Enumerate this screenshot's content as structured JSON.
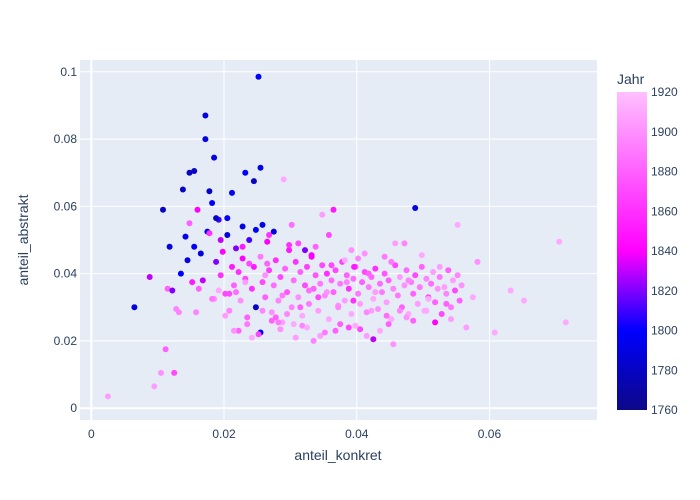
{
  "chart_data": {
    "type": "scatter",
    "title": "",
    "xlabel": "anteil_konkret",
    "ylabel": "anteil_abstrakt",
    "xlim": [
      -0.0017,
      0.0762
    ],
    "ylim": [
      -0.0035,
      0.1035
    ],
    "xticks": [
      "0",
      "0.02",
      "0.04",
      "0.06"
    ],
    "xtick_values": [
      0,
      0.02,
      0.04,
      0.06
    ],
    "yticks": [
      "0",
      "0.02",
      "0.04",
      "0.06",
      "0.08",
      "0.1"
    ],
    "ytick_values": [
      0,
      0.02,
      0.04,
      0.06,
      0.08,
      0.1
    ],
    "grid": true,
    "colorbar": {
      "title": "Jahr",
      "min": 1760,
      "max": 1920,
      "ticks": [
        "1760",
        "1780",
        "1800",
        "1820",
        "1840",
        "1860",
        "1880",
        "1900",
        "1920"
      ],
      "tick_values": [
        1760,
        1780,
        1800,
        1820,
        1840,
        1860,
        1880,
        1900,
        1920
      ],
      "colors": [
        "#0d0887",
        "#0000ff",
        "#ff00ff",
        "#ffc0ff"
      ]
    },
    "plot_bg": "#e5ecf6",
    "points_x": [
      0.0025,
      0.0095,
      0.0105,
      0.0112,
      0.0125,
      0.0132,
      0.0115,
      0.0185,
      0.0065,
      0.0088,
      0.0108,
      0.0118,
      0.0122,
      0.0128,
      0.0135,
      0.0138,
      0.0142,
      0.0145,
      0.0148,
      0.0152,
      0.0155,
      0.0158,
      0.0162,
      0.0165,
      0.0168,
      0.0172,
      0.0175,
      0.0178,
      0.0182,
      0.0185,
      0.0188,
      0.0192,
      0.0195,
      0.0198,
      0.0202,
      0.0205,
      0.0208,
      0.0212,
      0.0215,
      0.0218,
      0.0222,
      0.0225,
      0.0228,
      0.0232,
      0.0235,
      0.0238,
      0.0242,
      0.0245,
      0.0248,
      0.0252,
      0.0255,
      0.0258,
      0.0262,
      0.0265,
      0.0268,
      0.0272,
      0.0275,
      0.0278,
      0.0282,
      0.0285,
      0.0288,
      0.0292,
      0.0295,
      0.0298,
      0.0302,
      0.0305,
      0.0308,
      0.0312,
      0.0315,
      0.0318,
      0.0322,
      0.0325,
      0.0328,
      0.0332,
      0.0335,
      0.0338,
      0.0342,
      0.0345,
      0.0348,
      0.0352,
      0.0355,
      0.0358,
      0.0362,
      0.0365,
      0.0368,
      0.0372,
      0.0375,
      0.0378,
      0.0382,
      0.0385,
      0.0388,
      0.0392,
      0.0395,
      0.0398,
      0.0402,
      0.0405,
      0.0408,
      0.0412,
      0.0415,
      0.0418,
      0.0422,
      0.0425,
      0.0428,
      0.0432,
      0.0435,
      0.0438,
      0.0442,
      0.0445,
      0.0448,
      0.0452,
      0.0455,
      0.0458,
      0.0462,
      0.0465,
      0.0468,
      0.0472,
      0.0475,
      0.0478,
      0.0482,
      0.0485,
      0.0488,
      0.0492,
      0.0495,
      0.0498,
      0.0502,
      0.0505,
      0.0508,
      0.0512,
      0.0515,
      0.0518,
      0.0522,
      0.0525,
      0.0528,
      0.0532,
      0.0535,
      0.0538,
      0.0542,
      0.0545,
      0.0548,
      0.0552,
      0.0555,
      0.0558,
      0.0565,
      0.0575,
      0.0582,
      0.0608,
      0.0632,
      0.0652,
      0.0705,
      0.0715,
      0.0255,
      0.0172,
      0.0188,
      0.0155,
      0.0212,
      0.0232,
      0.0258,
      0.0275,
      0.029,
      0.016,
      0.0205,
      0.0228,
      0.0245,
      0.0365,
      0.0488,
      0.0178,
      0.0195,
      0.0248,
      0.0268,
      0.0312,
      0.0338,
      0.0392,
      0.0412,
      0.0452,
      0.0525,
      0.0552,
      0.0148,
      0.0228,
      0.0302,
      0.0348,
      0.0402,
      0.0458,
      0.0322,
      0.0358,
      0.0382,
      0.0418,
      0.0442,
      0.0498,
      0.0265,
      0.0298,
      0.0332,
      0.0362,
      0.0396,
      0.0428,
      0.0472,
      0.0508,
      0.0235,
      0.0255,
      0.0285,
      0.0318,
      0.0345,
      0.0375,
      0.0405,
      0.0435,
      0.0465,
      0.0202,
      0.0222,
      0.0252,
      0.0282,
      0.0308,
      0.0335,
      0.0368,
      0.0398,
      0.0425,
      0.0455,
      0.0485,
      0.0518,
      0.0542,
      0.0215,
      0.0242,
      0.0272,
      0.0295,
      0.0325,
      0.0352,
      0.0388,
      0.0415,
      0.0448,
      0.0478,
      0.0192,
      0.0218,
      0.0238,
      0.0262,
      0.0288,
      0.0315,
      0.0342,
      0.0372,
      0.0395,
      0.0422,
      0.0445,
      0.0475,
      0.0505,
      0.0535,
      0.0182,
      0.0208,
      0.0232,
      0.0258,
      0.0278,
      0.0305,
      0.0328,
      0.0355,
      0.0385,
      0.0408,
      0.0432,
      0.0462,
      0.0492,
      0.0522
    ],
    "points_y": [
      0.0035,
      0.0065,
      0.0105,
      0.0175,
      0.0105,
      0.0285,
      0.0355,
      0.0325,
      0.03,
      0.039,
      0.059,
      0.048,
      0.035,
      0.0295,
      0.04,
      0.065,
      0.051,
      0.044,
      0.07,
      0.0375,
      0.048,
      0.0285,
      0.0355,
      0.046,
      0.038,
      0.087,
      0.0525,
      0.0645,
      0.061,
      0.0745,
      0.0435,
      0.056,
      0.0395,
      0.0465,
      0.034,
      0.0515,
      0.029,
      0.042,
      0.0365,
      0.0475,
      0.0405,
      0.032,
      0.0445,
      0.0385,
      0.027,
      0.05,
      0.0355,
      0.042,
      0.03,
      0.0985,
      0.045,
      0.0375,
      0.033,
      0.0495,
      0.041,
      0.0285,
      0.0365,
      0.044,
      0.032,
      0.039,
      0.0255,
      0.0415,
      0.0345,
      0.047,
      0.03,
      0.038,
      0.0435,
      0.033,
      0.0405,
      0.0275,
      0.0365,
      0.042,
      0.031,
      0.0455,
      0.0355,
      0.0395,
      0.029,
      0.037,
      0.0425,
      0.0335,
      0.04,
      0.0265,
      0.038,
      0.0345,
      0.041,
      0.0305,
      0.037,
      0.0435,
      0.032,
      0.0395,
      0.0355,
      0.028,
      0.0385,
      0.042,
      0.034,
      0.031,
      0.0375,
      0.0405,
      0.0285,
      0.036,
      0.039,
      0.0325,
      0.0415,
      0.0295,
      0.037,
      0.0345,
      0.04,
      0.0315,
      0.038,
      0.0265,
      0.0355,
      0.0425,
      0.0335,
      0.039,
      0.03,
      0.0365,
      0.041,
      0.028,
      0.0375,
      0.034,
      0.0395,
      0.031,
      0.036,
      0.042,
      0.029,
      0.0385,
      0.033,
      0.037,
      0.0405,
      0.0315,
      0.0355,
      0.039,
      0.028,
      0.036,
      0.034,
      0.041,
      0.03,
      0.038,
      0.035,
      0.0395,
      0.032,
      0.0365,
      0.024,
      0.033,
      0.0435,
      0.0225,
      0.035,
      0.032,
      0.0495,
      0.0255,
      0.0715,
      0.08,
      0.0565,
      0.0705,
      0.064,
      0.07,
      0.0545,
      0.0525,
      0.068,
      0.059,
      0.0565,
      0.054,
      0.0675,
      0.059,
      0.0595,
      0.052,
      0.05,
      0.053,
      0.0515,
      0.049,
      0.048,
      0.047,
      0.046,
      0.0435,
      0.042,
      0.0545,
      0.055,
      0.048,
      0.0545,
      0.0575,
      0.0445,
      0.049,
      0.047,
      0.0515,
      0.044,
      0.04,
      0.045,
      0.0455,
      0.043,
      0.0485,
      0.045,
      0.0425,
      0.042,
      0.0345,
      0.049,
      0.0325,
      0.025,
      0.0225,
      0.0235,
      0.0245,
      0.0215,
      0.025,
      0.0235,
      0.023,
      0.029,
      0.0275,
      0.023,
      0.022,
      0.0255,
      0.021,
      0.02,
      0.023,
      0.0245,
      0.0205,
      0.019,
      0.026,
      0.0255,
      0.0265,
      0.023,
      0.021,
      0.026,
      0.028,
      0.024,
      0.0225,
      0.024,
      0.0215,
      0.025,
      0.038,
      0.035,
      0.0345,
      0.043,
      0.0395,
      0.0335,
      0.03,
      0.033,
      0.03,
      0.032,
      0.029,
      0.0275,
      0.027,
      0.029,
      0.031,
      0.0325,
      0.034,
      0.0375,
      0.029,
      0.027,
      0.025,
      0.035,
      0.0345,
      0.0375,
      0.038,
      0.034
    ],
    "points_year": [
      1905,
      1905,
      1900,
      1880,
      1870,
      1895,
      1880,
      1900,
      1790,
      1830,
      1780,
      1790,
      1820,
      1895,
      1800,
      1780,
      1795,
      1790,
      1780,
      1850,
      1800,
      1895,
      1880,
      1790,
      1830,
      1790,
      1800,
      1780,
      1800,
      1790,
      1820,
      1810,
      1860,
      1840,
      1870,
      1790,
      1895,
      1850,
      1880,
      1820,
      1860,
      1900,
      1840,
      1870,
      1880,
      1810,
      1860,
      1850,
      1780,
      1800,
      1890,
      1870,
      1880,
      1840,
      1865,
      1900,
      1885,
      1860,
      1895,
      1870,
      1905,
      1880,
      1875,
      1850,
      1895,
      1885,
      1860,
      1900,
      1880,
      1910,
      1870,
      1865,
      1890,
      1840,
      1880,
      1875,
      1905,
      1890,
      1870,
      1895,
      1860,
      1910,
      1885,
      1880,
      1870,
      1900,
      1890,
      1865,
      1905,
      1880,
      1860,
      1910,
      1885,
      1875,
      1890,
      1905,
      1880,
      1870,
      1895,
      1890,
      1880,
      1910,
      1860,
      1900,
      1885,
      1890,
      1875,
      1905,
      1880,
      1910,
      1895,
      1870,
      1890,
      1905,
      1880,
      1900,
      1885,
      1910,
      1890,
      1880,
      1870,
      1905,
      1890,
      1880,
      1910,
      1895,
      1870,
      1885,
      1905,
      1880,
      1900,
      1890,
      1870,
      1905,
      1895,
      1880,
      1890,
      1905,
      1870,
      1895,
      1880,
      1900,
      1905,
      1910,
      1900,
      1910,
      1910,
      1910,
      1910,
      1910,
      1790,
      1790,
      1780,
      1780,
      1795,
      1800,
      1790,
      1790,
      1910,
      1840,
      1800,
      1790,
      1780,
      1850,
      1790,
      1860,
      1830,
      1800,
      1860,
      1870,
      1880,
      1900,
      1900,
      1890,
      1905,
      1910,
      1880,
      1850,
      1885,
      1905,
      1895,
      1905,
      1820,
      1870,
      1910,
      1880,
      1890,
      1910,
      1880,
      1860,
      1840,
      1870,
      1850,
      1905,
      1895,
      1910,
      1890,
      1800,
      1900,
      1895,
      1905,
      1880,
      1870,
      1910,
      1895,
      1905,
      1880,
      1870,
      1890,
      1905,
      1895,
      1880,
      1910,
      1830,
      1900,
      1880,
      1840,
      1905,
      1900,
      1910,
      1880,
      1895,
      1910,
      1890,
      1870,
      1905,
      1880,
      1895,
      1910,
      1885,
      1870,
      1900,
      1890,
      1880,
      1870,
      1895,
      1860,
      1905,
      1885,
      1900,
      1910,
      1880,
      1890,
      1870,
      1905,
      1895,
      1880,
      1910,
      1885,
      1900,
      1895
    ]
  }
}
